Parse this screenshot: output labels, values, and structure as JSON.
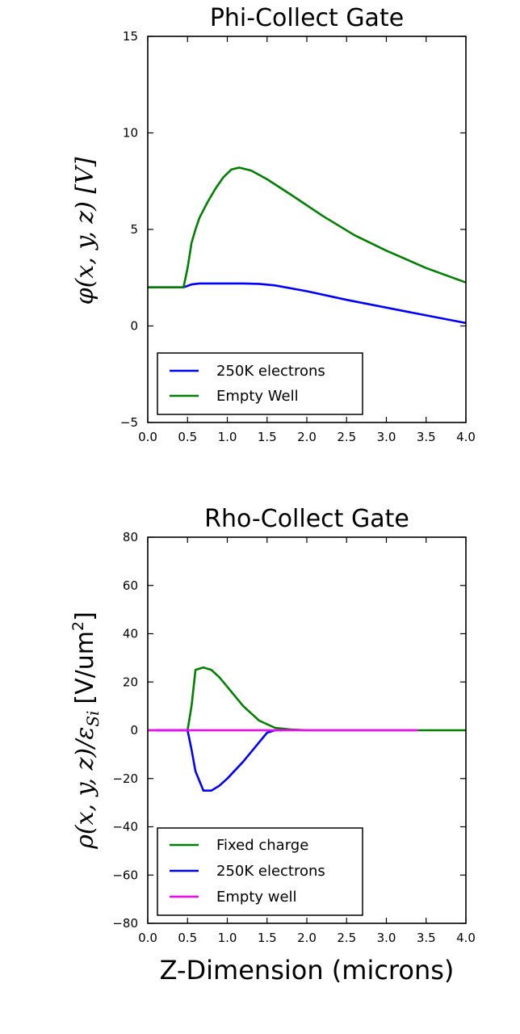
{
  "chart_data": [
    {
      "type": "line",
      "title": "Phi-Collect Gate",
      "ylabel": "φ(x, y, z) [V]",
      "xlabel": "",
      "xlim": [
        0.0,
        4.0
      ],
      "ylim": [
        -5,
        15
      ],
      "x_ticks": [
        "0.0",
        "0.5",
        "1.0",
        "1.5",
        "2.0",
        "2.5",
        "3.0",
        "3.5",
        "4.0"
      ],
      "y_ticks": [
        "−5",
        "0",
        "5",
        "10",
        "15"
      ],
      "legend_position": "lower-left",
      "series": [
        {
          "name": "250K electrons",
          "color": "#0000ff",
          "points": [
            [
              0.0,
              2.0
            ],
            [
              0.45,
              2.0
            ],
            [
              0.55,
              2.15
            ],
            [
              0.65,
              2.2
            ],
            [
              0.8,
              2.2
            ],
            [
              1.0,
              2.2
            ],
            [
              1.2,
              2.2
            ],
            [
              1.4,
              2.18
            ],
            [
              1.6,
              2.1
            ],
            [
              2.0,
              1.8
            ],
            [
              2.5,
              1.35
            ],
            [
              3.0,
              0.95
            ],
            [
              3.5,
              0.55
            ],
            [
              4.0,
              0.15
            ]
          ]
        },
        {
          "name": "Empty Well",
          "color": "#008000",
          "points": [
            [
              0.0,
              2.0
            ],
            [
              0.45,
              2.0
            ],
            [
              0.5,
              3.0
            ],
            [
              0.55,
              4.3
            ],
            [
              0.6,
              5.0
            ],
            [
              0.65,
              5.6
            ],
            [
              0.75,
              6.4
            ],
            [
              0.85,
              7.1
            ],
            [
              0.95,
              7.7
            ],
            [
              1.05,
              8.1
            ],
            [
              1.15,
              8.2
            ],
            [
              1.3,
              8.05
            ],
            [
              1.5,
              7.6
            ],
            [
              1.8,
              6.8
            ],
            [
              2.2,
              5.7
            ],
            [
              2.6,
              4.7
            ],
            [
              3.0,
              3.9
            ],
            [
              3.5,
              3.0
            ],
            [
              4.0,
              2.25
            ]
          ]
        }
      ]
    },
    {
      "type": "line",
      "title": "Rho-Collect Gate",
      "ylabel": "ρ(x, y, z)/ε",
      "ylabel_subscript": "Si",
      "ylabel_units": "[V/um",
      "ylabel_power": "2",
      "ylabel_close": "]",
      "xlabel": "Z-Dimension (microns)",
      "xlim": [
        0.0,
        4.0
      ],
      "ylim": [
        -80,
        80
      ],
      "x_ticks": [
        "0.0",
        "0.5",
        "1.0",
        "1.5",
        "2.0",
        "2.5",
        "3.0",
        "3.5",
        "4.0"
      ],
      "y_ticks": [
        "−80",
        "−60",
        "−40",
        "−20",
        "0",
        "20",
        "40",
        "60",
        "80"
      ],
      "legend_position": "lower-left",
      "series": [
        {
          "name": "Fixed charge",
          "color": "#008000",
          "points": [
            [
              0.0,
              0.0
            ],
            [
              0.5,
              0.0
            ],
            [
              0.55,
              10.0
            ],
            [
              0.6,
              25.0
            ],
            [
              0.7,
              26.0
            ],
            [
              0.8,
              25.0
            ],
            [
              0.9,
              22.0
            ],
            [
              1.0,
              18.0
            ],
            [
              1.2,
              10.0
            ],
            [
              1.4,
              4.0
            ],
            [
              1.6,
              1.0
            ],
            [
              1.8,
              0.3
            ],
            [
              2.0,
              0.0
            ],
            [
              4.0,
              0.0
            ]
          ]
        },
        {
          "name": "250K electrons",
          "color": "#0000ff",
          "points": [
            [
              0.1,
              0.0
            ],
            [
              0.5,
              0.0
            ],
            [
              0.55,
              -8.0
            ],
            [
              0.6,
              -17.0
            ],
            [
              0.7,
              -25.0
            ],
            [
              0.8,
              -25.0
            ],
            [
              0.9,
              -23.0
            ],
            [
              1.0,
              -20.0
            ],
            [
              1.2,
              -13.0
            ],
            [
              1.4,
              -5.0
            ],
            [
              1.5,
              -1.0
            ],
            [
              1.6,
              0.0
            ],
            [
              1.7,
              0.0
            ]
          ]
        },
        {
          "name": "Empty well",
          "color": "#ff00ff",
          "points": [
            [
              0.0,
              0.0
            ],
            [
              3.4,
              0.0
            ]
          ]
        }
      ]
    }
  ]
}
